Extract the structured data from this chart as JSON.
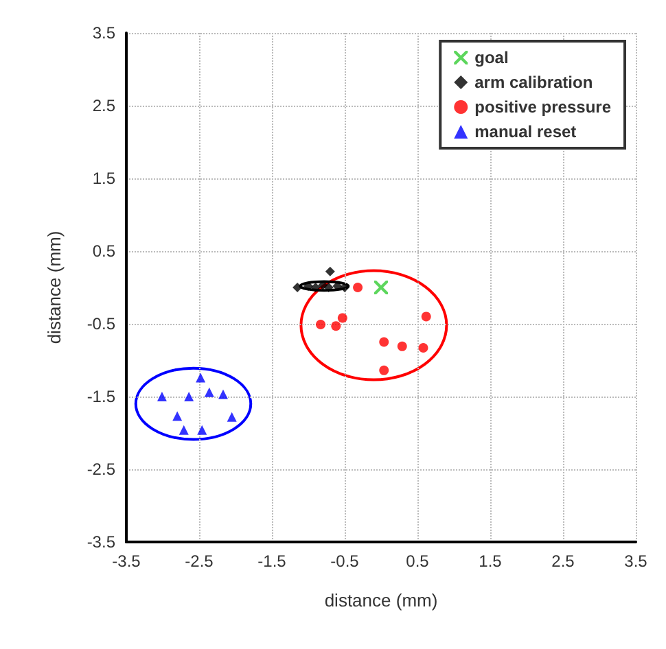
{
  "chart_data": {
    "type": "scatter",
    "xlabel": "distance (mm)",
    "ylabel": "distance (mm)",
    "xlim": [
      -3.5,
      3.5
    ],
    "ylim": [
      -3.5,
      3.5
    ],
    "xticks": [
      -3.5,
      -2.5,
      -1.5,
      -0.5,
      0.5,
      1.5,
      2.5,
      3.5
    ],
    "yticks": [
      -3.5,
      -2.5,
      -1.5,
      -0.5,
      0.5,
      1.5,
      2.5,
      3.5
    ],
    "grid": true,
    "legend": "top right",
    "series": [
      {
        "name": "goal",
        "marker": "cross",
        "color": "#33cc33",
        "x": [
          0
        ],
        "values": [
          0
        ]
      },
      {
        "name": "arm calibration",
        "marker": "diamond",
        "color": "#000000",
        "x": [
          -1.15,
          -1.0,
          -0.9,
          -0.8,
          -0.72,
          -0.7,
          -0.6,
          -0.5
        ],
        "values": [
          0,
          0.02,
          0,
          0.03,
          0,
          0.22,
          0.02,
          0
        ]
      },
      {
        "name": "positive pressure",
        "marker": "circle",
        "color": "#ff0000",
        "x": [
          -0.32,
          -0.83,
          -0.62,
          -0.53,
          0.62,
          0.04,
          0.29,
          0.58,
          0.04
        ],
        "values": [
          0,
          -0.51,
          -0.53,
          -0.42,
          -0.4,
          -0.75,
          -0.81,
          -0.83,
          -1.14
        ]
      },
      {
        "name": "manual reset",
        "marker": "triangle",
        "color": "#0000ff",
        "x": [
          -2.48,
          -3.01,
          -2.64,
          -2.36,
          -2.17,
          -2.8,
          -2.05,
          -2.71,
          -2.46
        ],
        "values": [
          -1.24,
          -1.5,
          -1.5,
          -1.44,
          -1.47,
          -1.77,
          -1.78,
          -1.96,
          -1.96
        ]
      }
    ]
  }
}
